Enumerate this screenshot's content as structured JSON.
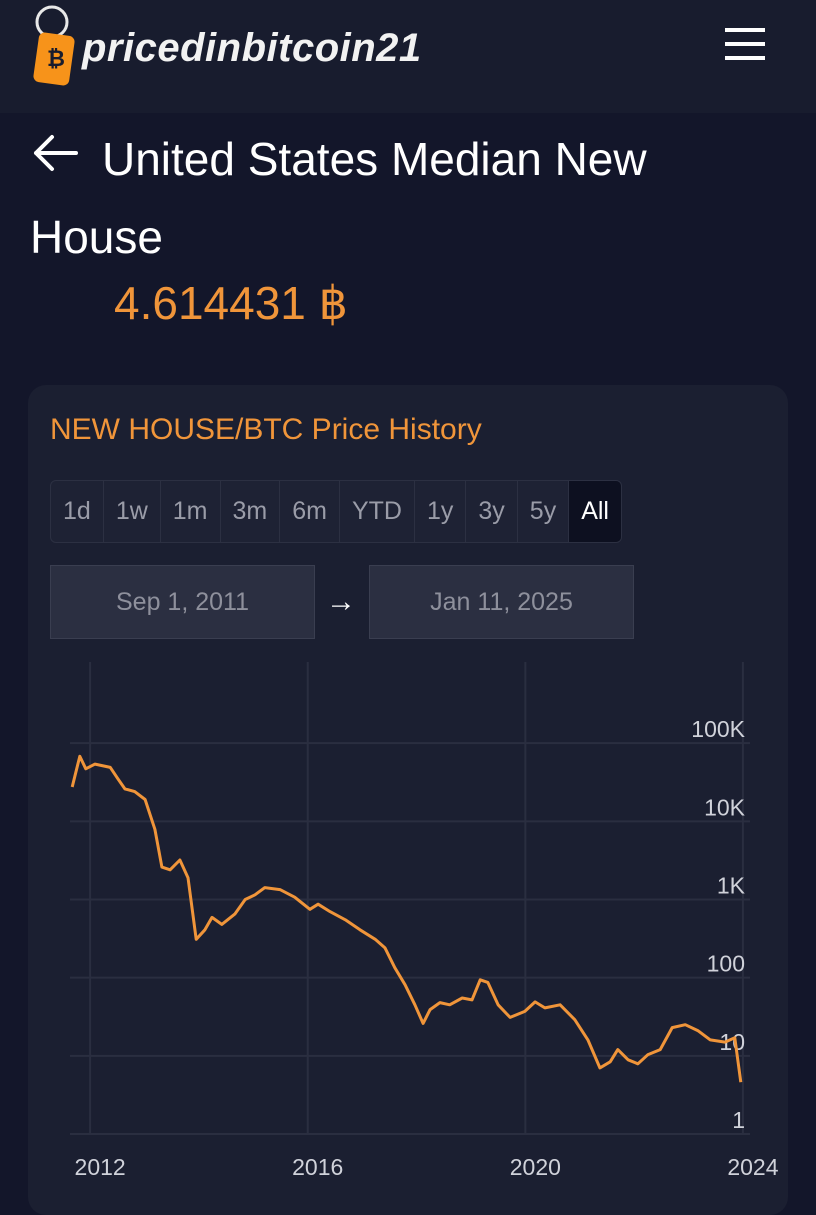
{
  "header": {
    "logo": "pricedinbitcoin21"
  },
  "page": {
    "title": "United States Median New House",
    "price": "4.614431 ฿"
  },
  "card": {
    "title": "NEW HOUSE/BTC Price History",
    "ranges": [
      "1d",
      "1w",
      "1m",
      "3m",
      "6m",
      "YTD",
      "1y",
      "3y",
      "5y",
      "All"
    ],
    "active_range": 9,
    "date_start": "Sep 1, 2011",
    "date_arrow": "→",
    "date_end": "Jan 11, 2025"
  },
  "chart_data": {
    "type": "line",
    "log_scale": true,
    "grid": true,
    "color": "#f0953a",
    "xlim": [
      2011.63,
      2024.13
    ],
    "xticks": [
      2012,
      2016,
      2020,
      2024
    ],
    "ylim": [
      1,
      1000000
    ],
    "yticks": [
      1,
      10,
      100,
      {
        "value": 1000,
        "label": "1K"
      },
      {
        "value": 10000,
        "label": "10K"
      },
      {
        "value": 100000,
        "label": "100K"
      }
    ],
    "x": [
      2011.67,
      2011.81,
      2011.92,
      2012.09,
      2012.37,
      2012.51,
      2012.64,
      2012.82,
      2013.01,
      2013.19,
      2013.32,
      2013.47,
      2013.65,
      2013.8,
      2013.95,
      2014.11,
      2014.24,
      2014.42,
      2014.66,
      2014.85,
      2015.03,
      2015.21,
      2015.49,
      2015.76,
      2016.04,
      2016.19,
      2016.41,
      2016.69,
      2016.96,
      2017.24,
      2017.42,
      2017.6,
      2017.79,
      2017.97,
      2018.12,
      2018.25,
      2018.43,
      2018.61,
      2018.84,
      2019.02,
      2019.17,
      2019.31,
      2019.5,
      2019.72,
      2019.99,
      2020.18,
      2020.36,
      2020.64,
      2020.91,
      2021.15,
      2021.37,
      2021.56,
      2021.7,
      2021.89,
      2022.07,
      2022.25,
      2022.48,
      2022.7,
      2022.94,
      2023.17,
      2023.4,
      2023.67,
      2023.85,
      2023.96
    ],
    "values": [
      27500,
      68000,
      47000,
      54000,
      49000,
      35000,
      26000,
      24000,
      19000,
      7900,
      2600,
      2400,
      3200,
      1900,
      310,
      410,
      590,
      480,
      650,
      1000,
      1150,
      1420,
      1340,
      1070,
      750,
      870,
      700,
      550,
      410,
      310,
      240,
      134,
      81,
      45,
      26,
      39,
      48,
      45,
      55,
      52,
      94,
      87,
      45,
      31,
      37,
      49,
      41,
      45,
      29,
      16,
      7.0,
      8.4,
      12,
      8.9,
      7.9,
      10.3,
      12,
      23,
      25,
      21,
      16,
      15,
      17,
      4.6
    ]
  }
}
